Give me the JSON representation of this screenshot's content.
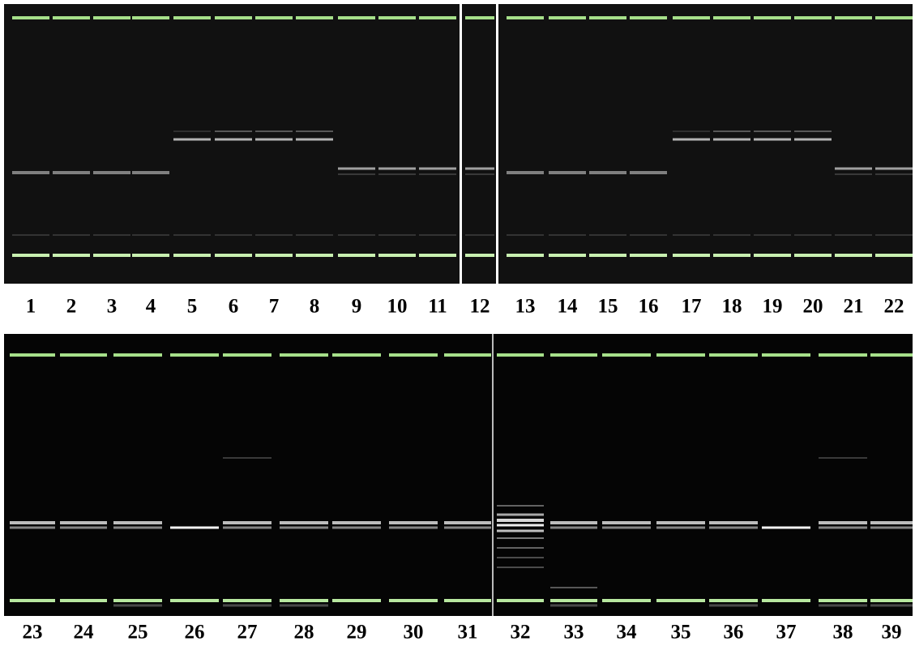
{
  "top_panel": {
    "lanes": [
      "1",
      "2",
      "3",
      "4",
      "5",
      "6",
      "7",
      "8",
      "9",
      "10",
      "11",
      "12",
      "13",
      "14",
      "15",
      "16",
      "17",
      "18",
      "19",
      "20",
      "21",
      "22"
    ]
  },
  "bottom_panel": {
    "lanes": [
      "23",
      "24",
      "25",
      "26",
      "27",
      "28",
      "29",
      "30",
      "31",
      "32",
      "33",
      "34",
      "35",
      "36",
      "37",
      "38",
      "39"
    ]
  }
}
